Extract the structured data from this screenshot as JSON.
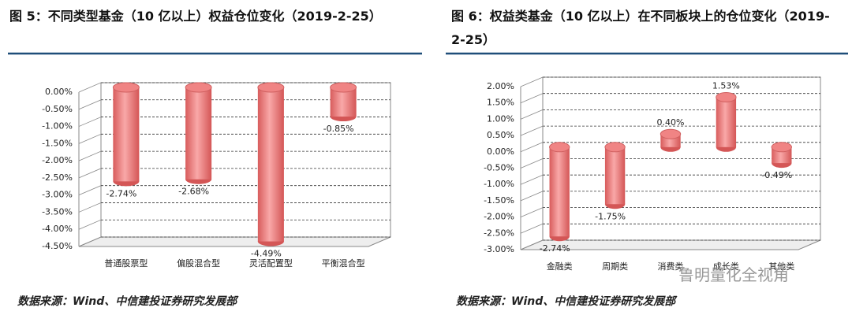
{
  "chart_data": [
    {
      "type": "bar",
      "title": "图 5：不同类型基金（10 亿以上）权益仓位变化（2019-2-25）",
      "categories": [
        "普通股票型",
        "偏股混合型",
        "灵活配置型",
        "平衡混合型"
      ],
      "values": [
        -2.74,
        -2.68,
        -4.49,
        -0.85
      ],
      "value_labels": [
        "-2.74%",
        "-2.68%",
        "-4.49%",
        "-0.85%"
      ],
      "color": "#f08484",
      "grid": true,
      "ylim": [
        -4.5,
        0
      ],
      "yticks": [
        {
          "value": -4.5,
          "label": "-4.50%"
        },
        {
          "value": -4,
          "label": "-4.00%"
        },
        {
          "value": -3.5,
          "label": "-3.50%"
        },
        {
          "value": -3,
          "label": "-3.00%"
        },
        {
          "value": -2.5,
          "label": "-2.50%"
        },
        {
          "value": -2,
          "label": "-2.00%"
        },
        {
          "value": -1.5,
          "label": "-1.50%"
        },
        {
          "value": -1,
          "label": "-1.00%"
        },
        {
          "value": -0.5,
          "label": "-0.50%"
        },
        {
          "value": 0,
          "label": "0.00%"
        }
      ],
      "source": "数据来源：Wind、中信建投证券研究发展部"
    },
    {
      "type": "bar",
      "title": "图 6：权益类基金（10 亿以上）在不同板块上的仓位变化（2019-2-25）",
      "categories": [
        "金融类",
        "周期类",
        "消费类",
        "成长类",
        "其他类"
      ],
      "values": [
        -2.74,
        -1.75,
        0.4,
        1.53,
        -0.49
      ],
      "value_labels": [
        "-2.74%",
        "-1.75%",
        "0.40%",
        "1.53%",
        "-0.49%"
      ],
      "color": "#f08484",
      "grid": true,
      "ylim": [
        -3,
        2
      ],
      "yticks": [
        {
          "value": -3,
          "label": "-3.00%"
        },
        {
          "value": -2.5,
          "label": "-2.50%"
        },
        {
          "value": -2,
          "label": "-2.00%"
        },
        {
          "value": -1.5,
          "label": "-1.50%"
        },
        {
          "value": -1,
          "label": "-1.00%"
        },
        {
          "value": -0.5,
          "label": "-0.50%"
        },
        {
          "value": 0,
          "label": "0.00%"
        },
        {
          "value": 0.5,
          "label": "0.50%"
        },
        {
          "value": 1,
          "label": "1.00%"
        },
        {
          "value": 1.5,
          "label": "1.50%"
        },
        {
          "value": 2,
          "label": "2.00%"
        }
      ],
      "source": "数据来源：Wind、中信建投证券研究发展部"
    }
  ],
  "watermark": "鲁明量化全视角"
}
